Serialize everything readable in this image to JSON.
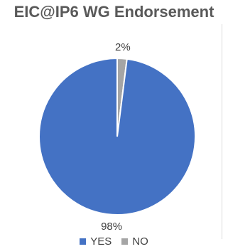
{
  "chart_data": {
    "type": "pie",
    "title": "EIC@IP6 WG Endorsement",
    "categories": [
      "YES",
      "NO"
    ],
    "values": [
      98,
      2
    ],
    "data_labels": [
      "98%",
      "2%"
    ],
    "colors": [
      "#4472c4",
      "#a5a5a5"
    ],
    "legend_position": "bottom"
  }
}
